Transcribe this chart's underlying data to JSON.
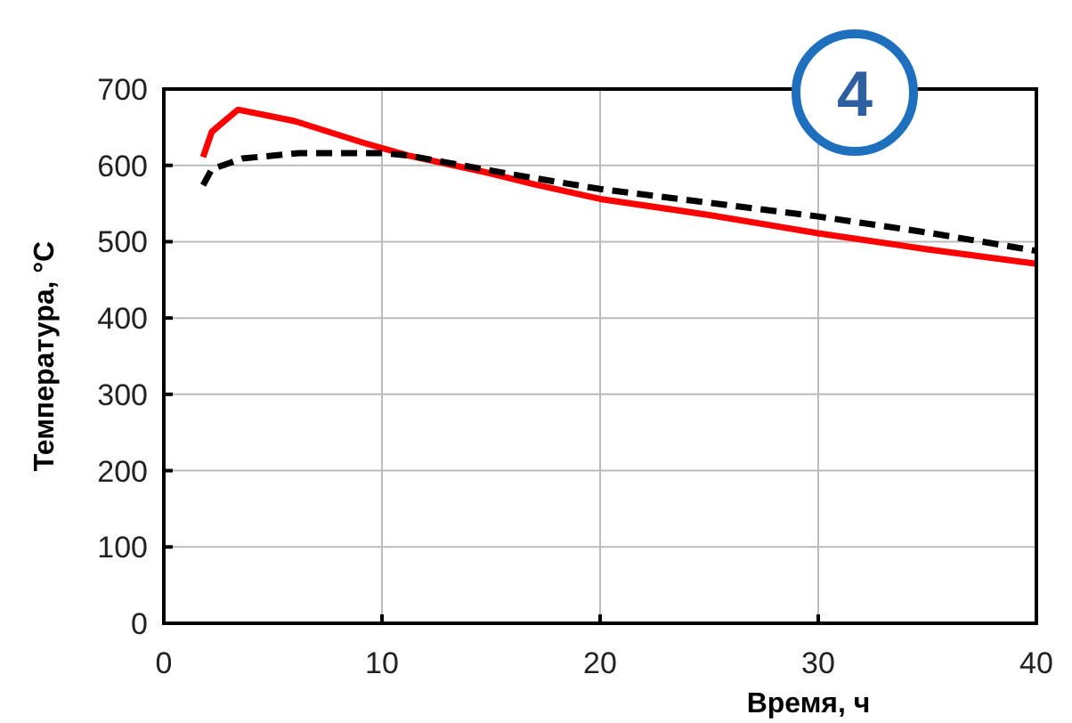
{
  "chart_data": {
    "type": "line",
    "xlabel": "Время, ч",
    "ylabel": "Температура, °C",
    "xlim": [
      0,
      40
    ],
    "xticks": [
      0,
      10,
      20,
      30,
      40
    ],
    "ylim": [
      0,
      700
    ],
    "yticks": [
      0,
      100,
      200,
      300,
      400,
      500,
      600,
      700
    ],
    "grid": true,
    "marker": "none",
    "annotations": [
      "4"
    ],
    "series": [
      {
        "color": "#ff0000",
        "line_style": "solid",
        "x": [
          1.8,
          2.2,
          3.4,
          6.0,
          9.1,
          11.2,
          14.9,
          17,
          20,
          25,
          30,
          35,
          40
        ],
        "values": [
          611,
          644,
          673,
          658,
          630,
          613,
          590,
          575,
          556,
          535,
          511,
          490,
          471
        ]
      },
      {
        "color": "#000000",
        "line_style": "dashed",
        "x": [
          1.8,
          2.2,
          3.6,
          6.2,
          10,
          11.2,
          16,
          20,
          25,
          30,
          35,
          40
        ],
        "values": [
          574,
          595,
          609,
          616,
          616,
          613,
          588,
          569,
          551,
          533,
          512,
          488
        ]
      }
    ]
  }
}
